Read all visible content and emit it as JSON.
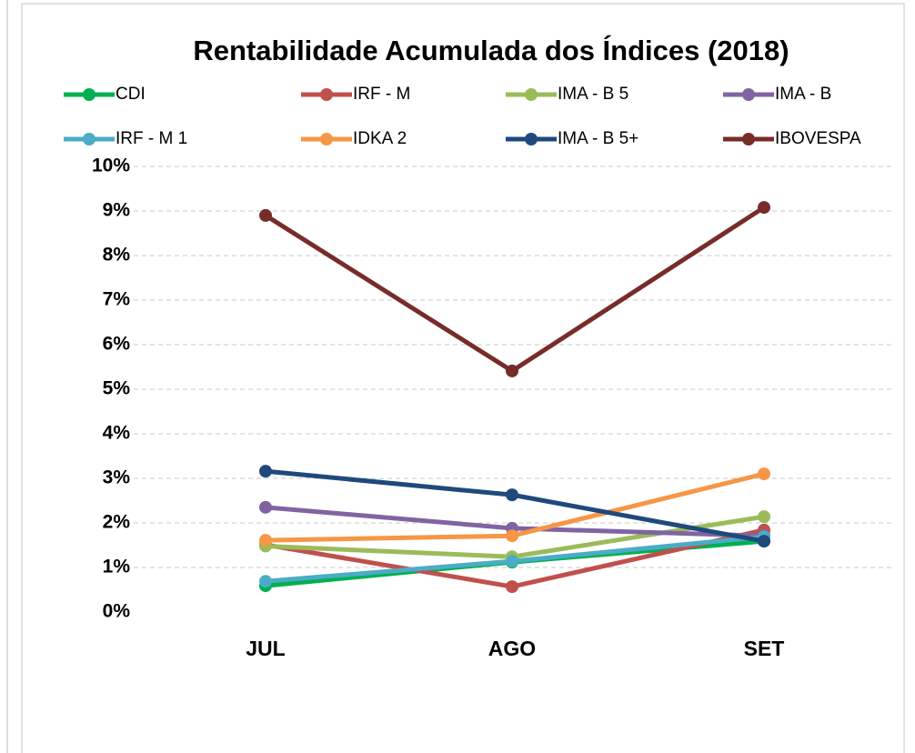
{
  "chart_data": {
    "type": "line",
    "title": "Rentabilidade Acumulada dos Índices (2018)",
    "categories": [
      "JUL",
      "AGO",
      "SET"
    ],
    "series": [
      {
        "name": "CDI",
        "color": "#00b050",
        "values": [
          0.59,
          1.12,
          1.59
        ]
      },
      {
        "name": "IRF - M",
        "color": "#c0504d",
        "values": [
          1.51,
          0.57,
          1.84
        ]
      },
      {
        "name": "IMA - B 5",
        "color": "#9bbb59",
        "values": [
          1.48,
          1.24,
          2.14
        ]
      },
      {
        "name": "IMA - B",
        "color": "#8064a2",
        "values": [
          2.35,
          1.88,
          1.71
        ]
      },
      {
        "name": "IRF - M 1",
        "color": "#4bacc6",
        "values": [
          0.69,
          1.14,
          1.69
        ]
      },
      {
        "name": "IDKA 2",
        "color": "#f79646",
        "values": [
          1.61,
          1.71,
          3.1
        ]
      },
      {
        "name": "IMA - B 5+",
        "color": "#1f497d",
        "values": [
          3.16,
          2.63,
          1.59
        ]
      },
      {
        "name": "IBOVESPA",
        "color": "#772c2a",
        "values": [
          8.9,
          5.41,
          9.08
        ]
      }
    ],
    "ylim": [
      0,
      10
    ],
    "yticks": [
      {
        "value": 0,
        "label": "0%"
      },
      {
        "value": 1,
        "label": "1%"
      },
      {
        "value": 2,
        "label": "2%"
      },
      {
        "value": 3,
        "label": "3%"
      },
      {
        "value": 4,
        "label": "4%"
      },
      {
        "value": 5,
        "label": "5%"
      },
      {
        "value": 6,
        "label": "6%"
      },
      {
        "value": 7,
        "label": "7%"
      },
      {
        "value": 8,
        "label": "8%"
      },
      {
        "value": 9,
        "label": "9%"
      },
      {
        "value": 10,
        "label": "10%"
      }
    ],
    "grid": true,
    "legend": "top"
  }
}
